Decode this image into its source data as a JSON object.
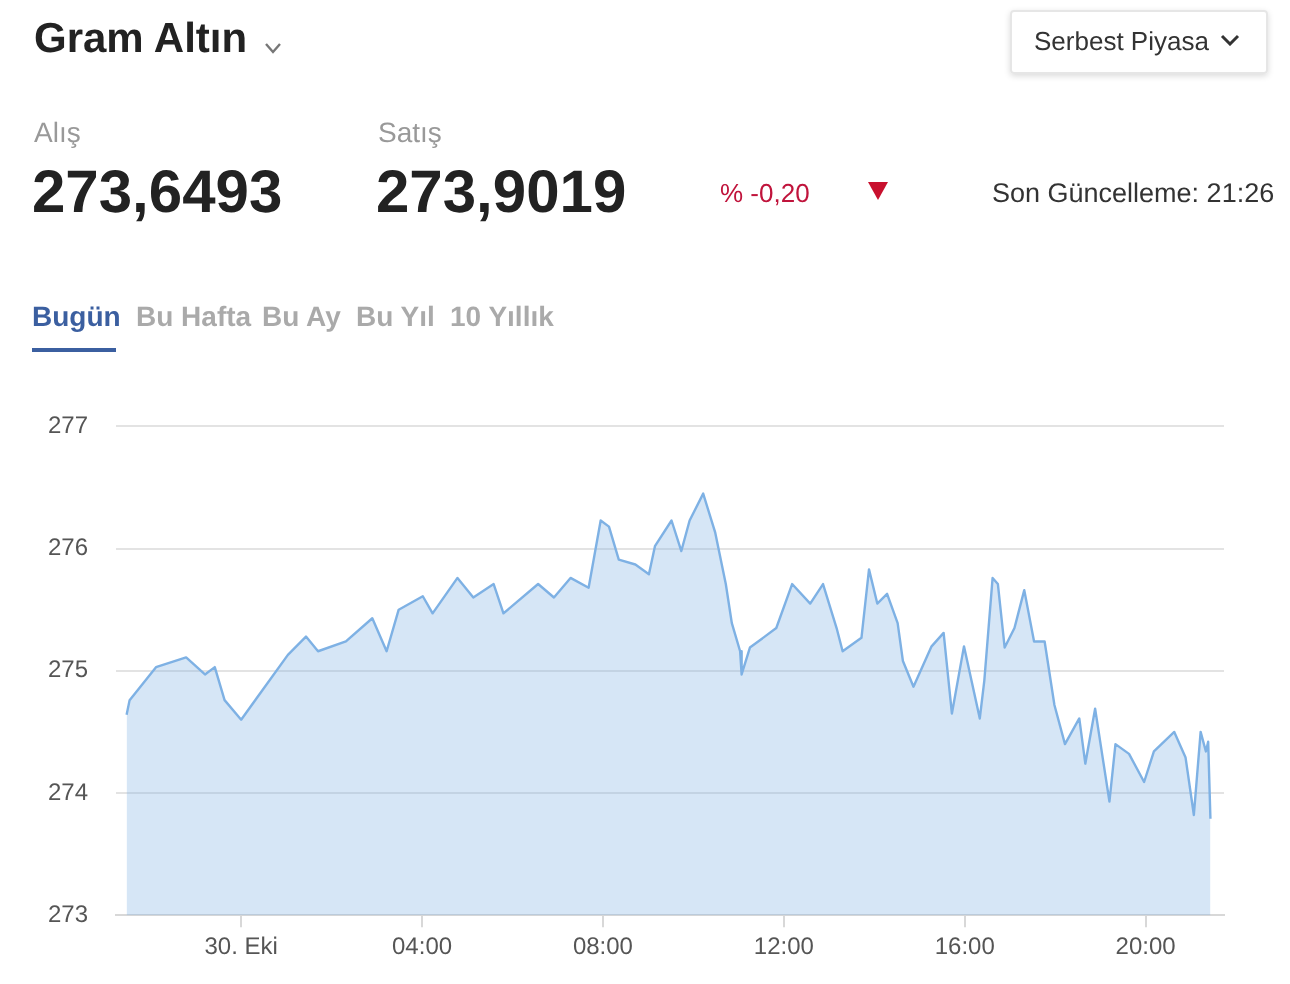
{
  "chart_data": {
    "type": "area",
    "title": "Gram Altın",
    "annotations": [
      "Serbest Piyasa",
      "Alış",
      "273,6493",
      "Satış",
      "273,9019",
      "% -0,20",
      "Son Güncelleme: 21:26",
      "Bugün",
      "Bu Hafta",
      "Bu Ay",
      "Bu Yıl",
      "10 Yıllık"
    ],
    "series": [
      {
        "color": "#7eb1e4",
        "x": [
          "--10-29T21:28",
          "--10-29T21:32",
          "--10-29T22:07",
          "--10-29T22:47",
          "--10-29T23:12",
          "--10-29T23:25",
          "--10-29T23:38",
          "--10-30T00:00",
          "--10-30T01:02",
          "--10-30T01:26",
          "--10-30T01:42",
          "--10-30T02:19",
          "--10-30T02:54",
          "--10-30T03:13",
          "--10-30T03:29",
          "--10-30T04:01",
          "--10-30T04:14",
          "--10-30T04:47",
          "--10-30T05:08",
          "--10-30T05:35",
          "--10-30T05:48",
          "--10-30T06:34",
          "--10-30T06:55",
          "--10-30T07:17",
          "--10-30T07:41",
          "--10-30T07:57",
          "--10-30T08:08",
          "--10-30T08:21",
          "--10-30T08:43",
          "--10-30T09:01",
          "--10-30T09:09",
          "--10-30T09:31",
          "--10-30T09:44",
          "--10-30T09:55",
          "--10-30T10:13",
          "--10-30T10:29",
          "--10-30T10:43",
          "--10-30T10:51",
          "--10-30T11:02",
          "--10-30T11:04",
          "--10-30T11:15",
          "--10-30T11:50",
          "--10-30T12:11",
          "--10-30T12:35",
          "--10-30T12:52",
          "--10-30T13:10",
          "--10-30T13:18",
          "--10-30T13:43",
          "--10-30T13:53",
          "--10-30T14:04",
          "--10-30T14:17",
          "--10-30T14:31",
          "--10-30T14:38",
          "--10-30T14:52",
          "--10-30T15:16",
          "--10-30T15:32",
          "--10-30T15:43",
          "--10-30T15:59",
          "--10-30T16:20",
          "--10-30T16:26",
          "--10-30T16:37",
          "--10-30T16:44",
          "--10-30T16:53",
          "--10-30T17:06",
          "--10-30T17:19",
          "--10-30T17:32",
          "--10-30T17:46",
          "--10-30T17:59",
          "--10-30T18:13",
          "--10-30T18:32",
          "--10-30T18:40",
          "--10-30T18:53",
          "--10-30T19:12",
          "--10-30T19:20",
          "--10-30T19:38",
          "--10-30T19:58",
          "--10-30T20:11",
          "--10-30T20:38",
          "--10-30T20:53",
          "--10-30T21:04",
          "--10-30T21:13",
          "--10-30T21:20",
          "--10-30T21:23",
          "--10-30T21:26"
        ],
        "values": [
          274.64,
          274.76,
          275.03,
          275.11,
          274.97,
          275.03,
          274.76,
          274.6,
          275.13,
          275.28,
          275.16,
          275.24,
          275.43,
          275.16,
          275.5,
          275.61,
          275.47,
          275.76,
          275.6,
          275.71,
          275.47,
          275.71,
          275.6,
          275.76,
          275.68,
          276.23,
          276.18,
          275.91,
          275.87,
          275.79,
          276.02,
          276.23,
          275.98,
          276.23,
          276.45,
          276.13,
          275.71,
          275.39,
          275.16,
          274.97,
          275.19,
          275.35,
          275.71,
          275.55,
          275.71,
          275.35,
          275.16,
          275.27,
          275.83,
          275.55,
          275.63,
          275.39,
          275.08,
          274.87,
          275.2,
          275.31,
          274.65,
          275.2,
          274.61,
          274.92,
          275.76,
          275.71,
          275.19,
          275.35,
          275.66,
          275.24,
          275.24,
          274.72,
          274.4,
          274.61,
          274.24,
          274.69,
          273.93,
          274.4,
          274.32,
          274.09,
          274.34,
          274.5,
          274.29,
          273.82,
          274.5,
          274.34,
          274.42,
          273.79
        ]
      }
    ],
    "xlim": [
      "--10-29T21:14",
      "--10-30T21:44"
    ],
    "xticks": [
      {
        "value": "--10-30T00:00",
        "label": "30. Eki"
      },
      {
        "value": "--10-30T04:00",
        "label": "04:00"
      },
      {
        "value": "--10-30T08:00",
        "label": "08:00"
      },
      {
        "value": "--10-30T12:00",
        "label": "12:00"
      },
      {
        "value": "--10-30T16:00",
        "label": "16:00"
      },
      {
        "value": "--10-30T20:00",
        "label": "20:00"
      }
    ],
    "ylim": [
      273,
      277
    ],
    "yticks": [
      273,
      274,
      275,
      276,
      277
    ],
    "grid": "y",
    "legend": false,
    "marker": "none",
    "line_style": "solid"
  }
}
